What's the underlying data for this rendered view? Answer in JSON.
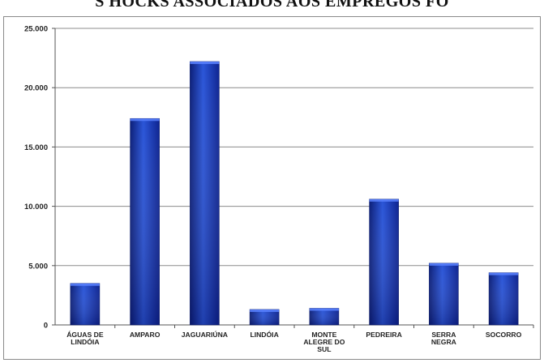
{
  "header": {
    "title_fragment": "S HOCKS ASSOCIADOS AOS EMPREGOS FO"
  },
  "chart_data": {
    "type": "bar",
    "title": "",
    "xlabel": "",
    "ylabel": "",
    "categories": [
      [
        "ÁGUAS DE",
        "LINDÓIA"
      ],
      [
        "AMPARO"
      ],
      [
        "JAGUARIÚNA"
      ],
      [
        "LINDÓIA"
      ],
      [
        "MONTE",
        "ALEGRE DO",
        "SUL"
      ],
      [
        "PEDREIRA"
      ],
      [
        "SERRA",
        "NEGRA"
      ],
      [
        "SOCORRO"
      ]
    ],
    "values": [
      3500,
      17400,
      22200,
      1300,
      1400,
      10600,
      5200,
      4400
    ],
    "ylim": [
      0,
      25000
    ],
    "yticks": [
      "0",
      "5.000",
      "10.000",
      "15.000",
      "20.000",
      "25.000"
    ],
    "grid": true,
    "bar_color": "#1a3bb0"
  }
}
